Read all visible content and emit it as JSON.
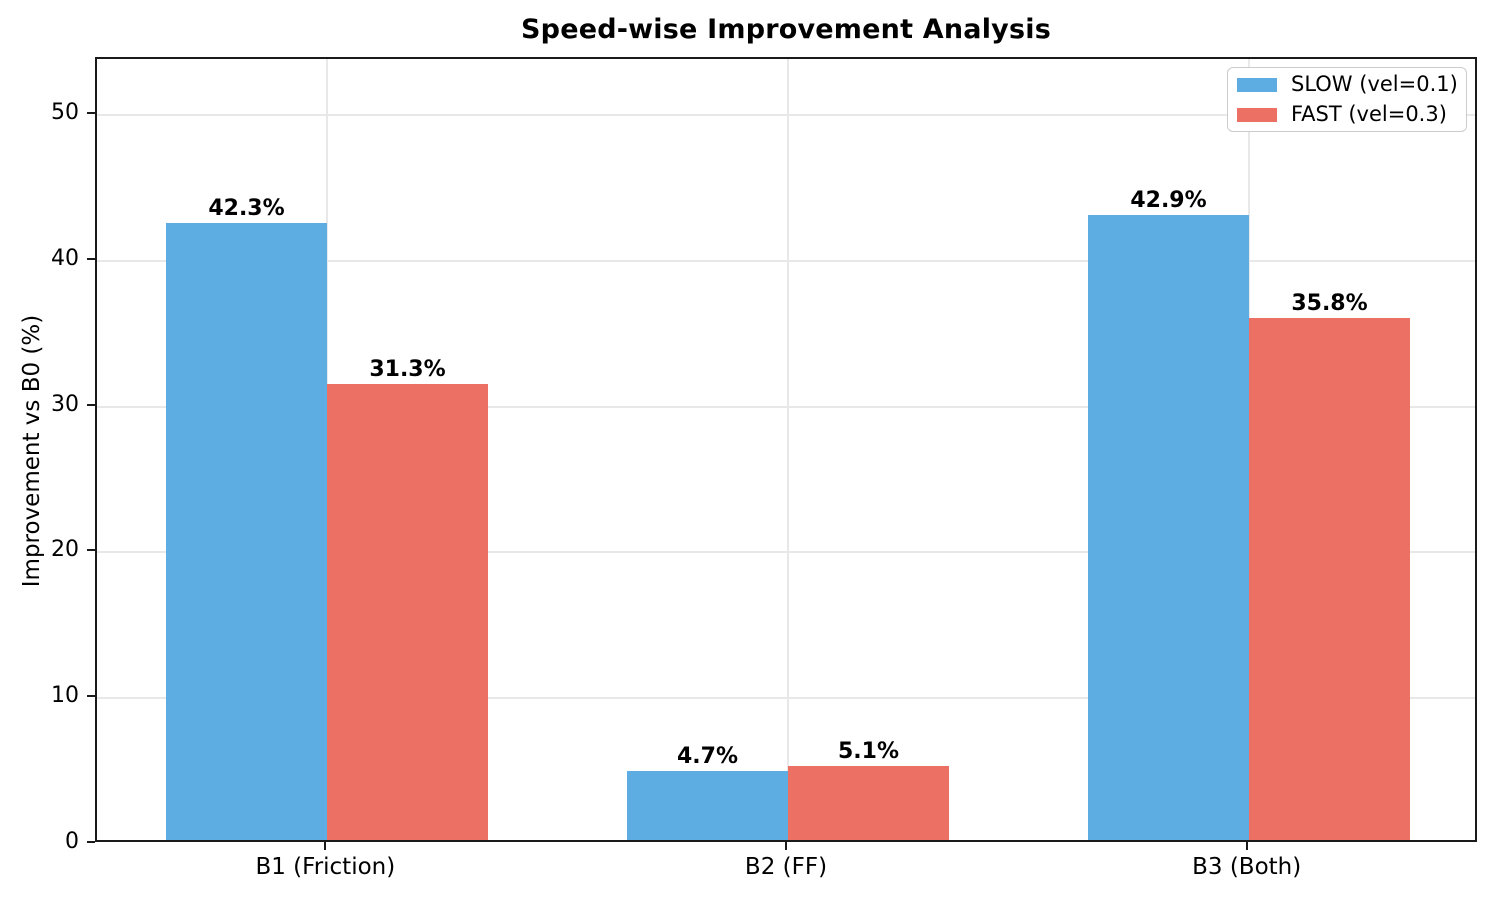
{
  "chart_data": {
    "type": "bar",
    "title": "Speed-wise Improvement Analysis",
    "categories": [
      "B1 (Friction)",
      "B2 (FF)",
      "B3 (Both)"
    ],
    "series": [
      {
        "name": "SLOW (vel=0.1)",
        "color": "#5DADE2",
        "values": [
          42.3,
          4.7,
          42.9
        ],
        "labels": [
          "42.3%",
          "4.7%",
          "42.9%"
        ]
      },
      {
        "name": "FAST (vel=0.3)",
        "color": "#EC7063",
        "values": [
          31.3,
          5.1,
          35.8
        ],
        "labels": [
          "31.3%",
          "5.1%",
          "35.8%"
        ]
      }
    ],
    "xlabel": "",
    "ylabel": "Improvement vs B0 (%)",
    "ylim": [
      0,
      53.85
    ],
    "yticks": [
      0,
      10,
      20,
      30,
      40,
      50
    ],
    "grid": true,
    "legend_position": "upper right",
    "bar_width_fraction": 0.35,
    "colors": {
      "grid": "#e8e8e8",
      "spine": "#1a1a1a",
      "text": "#000000"
    }
  }
}
